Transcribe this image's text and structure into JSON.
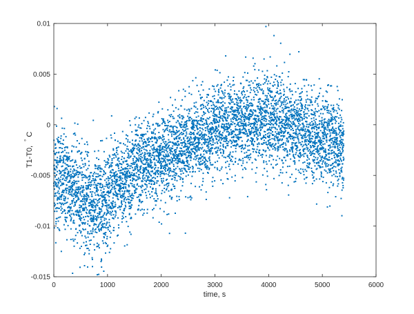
{
  "chart_data": {
    "type": "scatter",
    "title": "",
    "xlabel": "time, s",
    "ylabel": "T1-T0,",
    "ylabel_unit_degree": "°",
    "ylabel_unit": "C",
    "xlim": [
      0,
      6000
    ],
    "ylim": [
      -0.015,
      0.01
    ],
    "xticks": [
      "0",
      "1000",
      "2000",
      "3000",
      "4000",
      "5000",
      "6000"
    ],
    "yticks": [
      "-0.015",
      "-0.01",
      "-0.005",
      "0",
      "0.005",
      "0.01"
    ],
    "grid": false,
    "legend": "none",
    "marker_color": "#0072BD",
    "x_range_of_points": [
      0,
      5400
    ],
    "point_count_approx": 5400,
    "trend": [
      {
        "time": 0,
        "mean": -0.005,
        "spread": 0.0025
      },
      {
        "time": 300,
        "mean": -0.006,
        "spread": 0.0024
      },
      {
        "time": 600,
        "mean": -0.0075,
        "spread": 0.0025
      },
      {
        "time": 800,
        "mean": -0.0082,
        "spread": 0.0026
      },
      {
        "time": 1000,
        "mean": -0.007,
        "spread": 0.0024
      },
      {
        "time": 1300,
        "mean": -0.0055,
        "spread": 0.0023
      },
      {
        "time": 1600,
        "mean": -0.0042,
        "spread": 0.0022
      },
      {
        "time": 2000,
        "mean": -0.0032,
        "spread": 0.0021
      },
      {
        "time": 2500,
        "mean": -0.002,
        "spread": 0.0021
      },
      {
        "time": 3000,
        "mean": -0.0006,
        "spread": 0.0021
      },
      {
        "time": 3500,
        "mean": 0.0004,
        "spread": 0.0022
      },
      {
        "time": 4000,
        "mean": 0.0005,
        "spread": 0.0023
      },
      {
        "time": 4500,
        "mean": -0.0006,
        "spread": 0.0022
      },
      {
        "time": 5000,
        "mean": -0.0012,
        "spread": 0.0022
      },
      {
        "time": 5400,
        "mean": -0.0022,
        "spread": 0.0022
      }
    ],
    "notable_points": [
      {
        "x": 3950,
        "y": 0.0097
      },
      {
        "x": 4100,
        "y": 0.0088
      },
      {
        "x": 3200,
        "y": 0.0068
      },
      {
        "x": 720,
        "y": -0.014
      },
      {
        "x": 810,
        "y": -0.0148
      },
      {
        "x": 880,
        "y": -0.0135
      },
      {
        "x": 2450,
        "y": -0.0107
      },
      {
        "x": 140,
        "y": -0.0125
      },
      {
        "x": 10,
        "y": 0.0018
      },
      {
        "x": 60,
        "y": 0.0016
      }
    ]
  }
}
